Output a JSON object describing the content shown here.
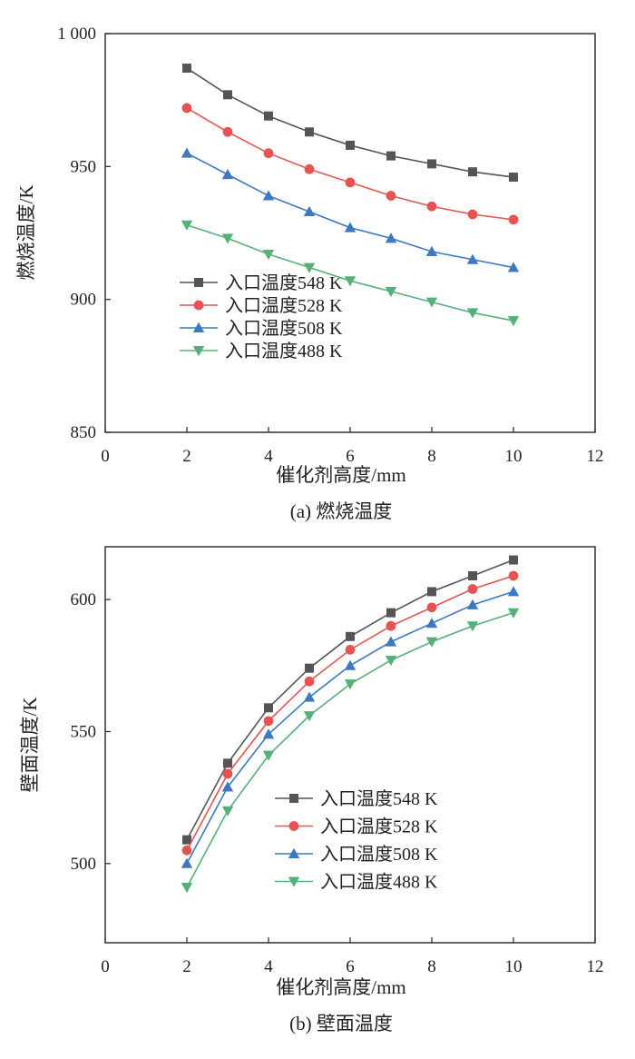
{
  "colors": {
    "axis": "#333333",
    "series": [
      "#555555",
      "#e55353",
      "#3d78c0",
      "#55b07a"
    ]
  },
  "chart_data": [
    {
      "type": "line",
      "caption": "(a) 燃烧温度",
      "xlabel": "催化剂高度/mm",
      "ylabel": "燃烧温度/K",
      "xlim": [
        0,
        12
      ],
      "ylim": [
        850,
        1000
      ],
      "xticks": [
        0,
        2,
        4,
        6,
        8,
        10,
        12
      ],
      "xtick_labels": [
        "0",
        "2",
        "4",
        "6",
        "8",
        "10",
        "12"
      ],
      "yticks": [
        850,
        900,
        950,
        1000
      ],
      "ytick_labels": [
        "850",
        "900",
        "950",
        "1 000"
      ],
      "grid": false,
      "legend_position": "lower-left",
      "x": [
        2,
        3,
        4,
        5,
        6,
        7,
        8,
        9,
        10
      ],
      "series": [
        {
          "name": "入口温度548 K",
          "marker": "square",
          "values": [
            987,
            977,
            969,
            963,
            958,
            954,
            951,
            948,
            946
          ]
        },
        {
          "name": "入口温度528 K",
          "marker": "circle",
          "values": [
            972,
            963,
            955,
            949,
            944,
            939,
            935,
            932,
            930
          ]
        },
        {
          "name": "入口温度508 K",
          "marker": "triangle-up",
          "values": [
            955,
            947,
            939,
            933,
            927,
            923,
            918,
            915,
            912
          ]
        },
        {
          "name": "入口温度488 K",
          "marker": "triangle-down",
          "values": [
            928,
            923,
            917,
            912,
            907,
            903,
            899,
            895,
            892
          ]
        }
      ]
    },
    {
      "type": "line",
      "caption": "(b) 壁面温度",
      "xlabel": "催化剂高度/mm",
      "ylabel": "壁面温度/K",
      "xlim": [
        0,
        12
      ],
      "ylim": [
        470,
        620
      ],
      "xticks": [
        0,
        2,
        4,
        6,
        8,
        10,
        12
      ],
      "xtick_labels": [
        "0",
        "2",
        "4",
        "6",
        "8",
        "10",
        "12"
      ],
      "yticks": [
        500,
        550,
        600
      ],
      "ytick_labels": [
        "500",
        "550",
        "600"
      ],
      "grid": false,
      "legend_position": "center-right",
      "x": [
        2,
        3,
        4,
        5,
        6,
        7,
        8,
        9,
        10
      ],
      "series": [
        {
          "name": "入口温度548 K",
          "marker": "square",
          "values": [
            509,
            538,
            559,
            574,
            586,
            595,
            603,
            609,
            615
          ]
        },
        {
          "name": "入口温度528 K",
          "marker": "circle",
          "values": [
            505,
            534,
            554,
            569,
            581,
            590,
            597,
            604,
            609
          ]
        },
        {
          "name": "入口温度508 K",
          "marker": "triangle-up",
          "values": [
            500,
            529,
            549,
            563,
            575,
            584,
            591,
            598,
            603
          ]
        },
        {
          "name": "入口温度488 K",
          "marker": "triangle-down",
          "values": [
            491,
            520,
            541,
            556,
            568,
            577,
            584,
            590,
            595
          ]
        }
      ]
    }
  ]
}
